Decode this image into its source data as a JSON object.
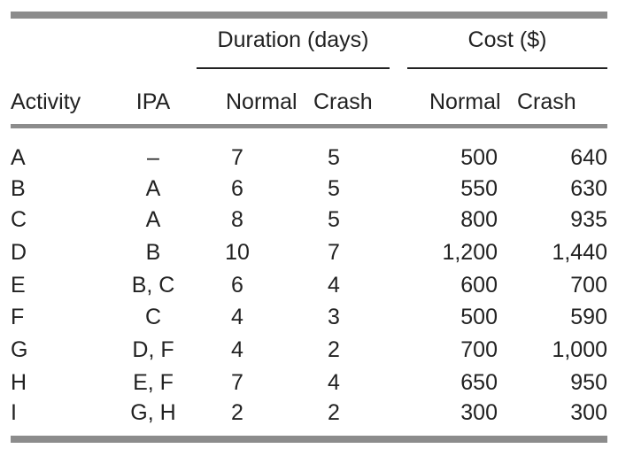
{
  "table": {
    "group_headers": {
      "duration": "Duration (days)",
      "cost": "Cost ($)"
    },
    "columns": {
      "activity": "Activity",
      "ipa": "IPA",
      "duration_normal": "Normal",
      "duration_crash": "Crash",
      "cost_normal": "Normal",
      "cost_crash": "Crash"
    },
    "rows": [
      {
        "activity": "A",
        "ipa": "–",
        "dn": "7",
        "dc": "5",
        "cn": "500",
        "cc": "640"
      },
      {
        "activity": "B",
        "ipa": "A",
        "dn": "6",
        "dc": "5",
        "cn": "550",
        "cc": "630"
      },
      {
        "activity": "C",
        "ipa": "A",
        "dn": "8",
        "dc": "5",
        "cn": "800",
        "cc": "935"
      },
      {
        "activity": "D",
        "ipa": "B",
        "dn": "10",
        "dc": "7",
        "cn": "1,200",
        "cc": "1,440"
      },
      {
        "activity": "E",
        "ipa": "B, C",
        "dn": "6",
        "dc": "4",
        "cn": "600",
        "cc": "700"
      },
      {
        "activity": "F",
        "ipa": "C",
        "dn": "4",
        "dc": "3",
        "cn": "500",
        "cc": "590"
      },
      {
        "activity": "G",
        "ipa": "D, F",
        "dn": "4",
        "dc": "2",
        "cn": "700",
        "cc": "1,000"
      },
      {
        "activity": "H",
        "ipa": "E, F",
        "dn": "7",
        "dc": "4",
        "cn": "650",
        "cc": "950"
      },
      {
        "activity": "I",
        "ipa": "G, H",
        "dn": "2",
        "dc": "2",
        "cn": "300",
        "cc": "300"
      }
    ]
  },
  "colors": {
    "rule": "#8c8c8c",
    "text": "#222222"
  }
}
